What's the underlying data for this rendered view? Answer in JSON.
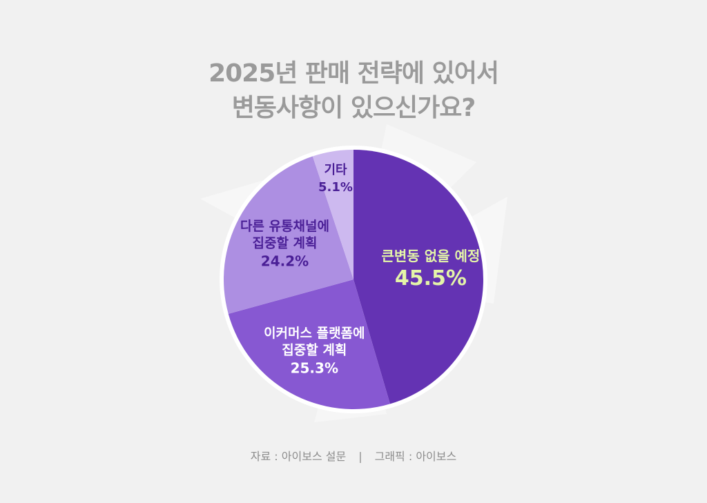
{
  "title": {
    "line1": "2025년 판매 전략에 있어서",
    "line2": "변동사항이 있으신가요?"
  },
  "chart_data": {
    "type": "pie",
    "start": "12-o-clock",
    "direction": "clockwise",
    "slices": [
      {
        "label_lines": [
          "큰변동 없을 예정"
        ],
        "value": 45.5,
        "value_label": "45.5%",
        "color": "#6433b3",
        "label_color": "#e4f5a8",
        "value_color": "#e4f5a8"
      },
      {
        "label_lines": [
          "이커머스 플랫폼에",
          "집중할 계획"
        ],
        "value": 25.3,
        "value_label": "25.3%",
        "color": "#8758d2",
        "label_color": "#ffffff",
        "value_color": "#ffffff"
      },
      {
        "label_lines": [
          "다른 유통채널에",
          "집중할 계획"
        ],
        "value": 24.2,
        "value_label": "24.2%",
        "color": "#ad8fe2",
        "label_color": "#4a1f96",
        "value_color": "#4a1f96"
      },
      {
        "label_lines": [
          "기타"
        ],
        "value": 5.1,
        "value_label": "5.1%",
        "color": "#cdb9ef",
        "label_color": "#4a1f96",
        "value_color": "#4a1f96"
      }
    ]
  },
  "footer": {
    "source": "자료 : 아이보스 설문",
    "separator": "|",
    "graphic": "그래픽 : 아이보스"
  }
}
